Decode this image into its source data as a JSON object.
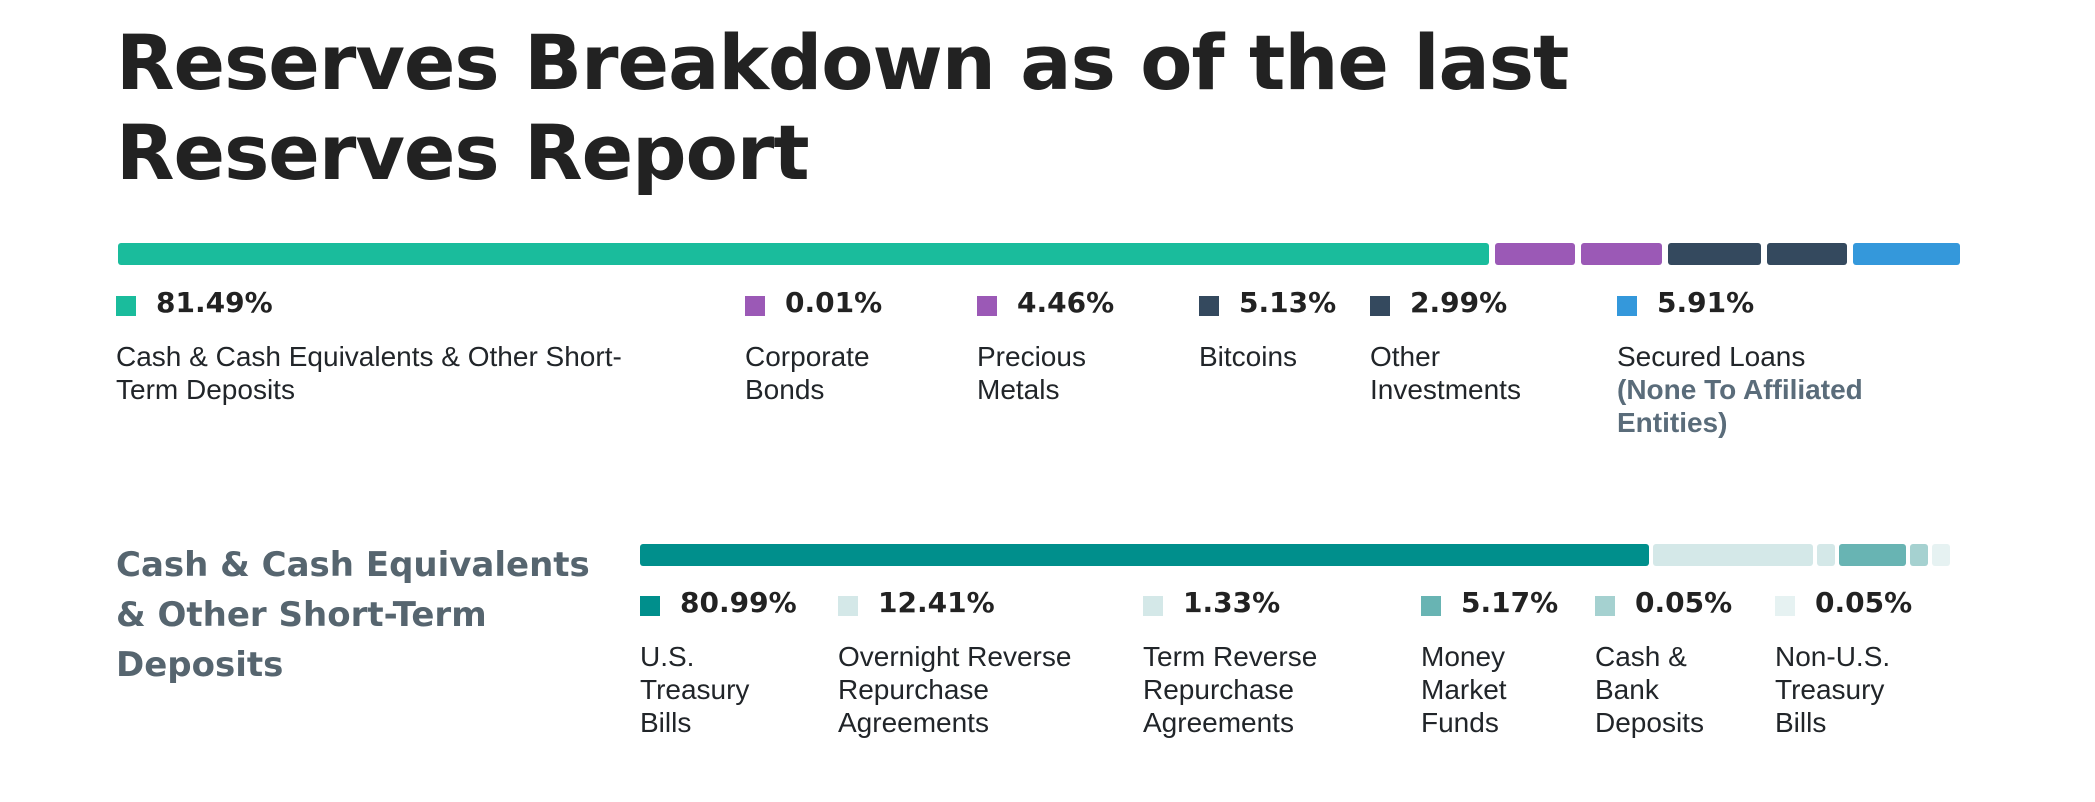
{
  "title": "Reserves Breakdown as of the last Reserves Report",
  "chart_data": [
    {
      "type": "bar",
      "stacked": true,
      "orientation": "horizontal",
      "title": "",
      "series": [
        {
          "label": "Cash & Cash Equivalents & Other Short-Term Deposits",
          "value": 81.49,
          "display": "81.49%",
          "color": "#1abc9c"
        },
        {
          "label": "Corporate Bonds",
          "value": 0.01,
          "display": "0.01%",
          "color": "#9b59b6"
        },
        {
          "label": "Precious Metals",
          "value": 4.46,
          "display": "4.46%",
          "color": "#9b59b6"
        },
        {
          "label": "Bitcoins",
          "value": 5.13,
          "display": "5.13%",
          "color": "#34495e"
        },
        {
          "label": "Other Investments",
          "value": 2.99,
          "display": "2.99%",
          "color": "#34495e"
        },
        {
          "label": "Secured Loans",
          "note": "(None To Affiliated Entities)",
          "value": 5.91,
          "display": "5.91%",
          "color": "#3498db"
        }
      ]
    },
    {
      "type": "bar",
      "stacked": true,
      "orientation": "horizontal",
      "title": "Cash & Cash Equivalents & Other Short-Term Deposits",
      "series": [
        {
          "label": "U.S. Treasury Bills",
          "value": 80.99,
          "display": "80.99%",
          "color": "#008f8c"
        },
        {
          "label": "Overnight Reverse Repurchase Agreements",
          "value": 12.41,
          "display": "12.41%",
          "color": "#d4e8e8"
        },
        {
          "label": "Term Reverse Repurchase Agreements",
          "value": 1.33,
          "display": "1.33%",
          "color": "#d4e8e8"
        },
        {
          "label": "Money Market Funds",
          "value": 5.17,
          "display": "5.17%",
          "color": "#68b4b3"
        },
        {
          "label": "Cash & Bank Deposits",
          "value": 0.05,
          "display": "0.05%",
          "color": "#a5d1d0"
        },
        {
          "label": "Non-U.S. Treasury Bills",
          "value": 0.05,
          "display": "0.05%",
          "color": "#e6f2f2"
        }
      ]
    }
  ]
}
